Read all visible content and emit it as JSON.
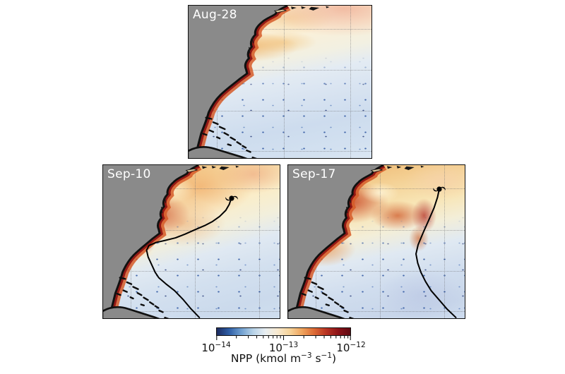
{
  "figure": {
    "background": "#ffffff",
    "land_color": "#8a8a8a",
    "track_color": "#000000",
    "panels": [
      {
        "id": "aug28",
        "label": "Aug-28",
        "has_hurricane_track": false
      },
      {
        "id": "sep10",
        "label": "Sep-10",
        "has_hurricane_track": true
      },
      {
        "id": "sep17",
        "label": "Sep-17",
        "has_hurricane_track": true
      }
    ],
    "hurricane": {
      "sep10": [
        72.6,
        21.6
      ],
      "sep17": [
        85.6,
        15.5
      ]
    },
    "tracks": {
      "sep10": [
        [
          54.5,
          99.5
        ],
        [
          49.5,
          93.5
        ],
        [
          45.5,
          88
        ],
        [
          40.5,
          82
        ],
        [
          35.5,
          77.5
        ],
        [
          31.5,
          73.5
        ],
        [
          29.5,
          70
        ],
        [
          27.5,
          65
        ],
        [
          25.5,
          60
        ],
        [
          24.6,
          55.5
        ],
        [
          26,
          52.5
        ],
        [
          30,
          50.5
        ],
        [
          35,
          49.2
        ],
        [
          41,
          47.5
        ],
        [
          46.5,
          45
        ],
        [
          52,
          42.2
        ],
        [
          57.5,
          39.5
        ],
        [
          62,
          36.8
        ],
        [
          66,
          33.5
        ],
        [
          69.5,
          29.5
        ],
        [
          71.5,
          25.5
        ],
        [
          72.6,
          21.6
        ]
      ],
      "sep17": [
        [
          95,
          99.5
        ],
        [
          90,
          94
        ],
        [
          85.5,
          88
        ],
        [
          81,
          82
        ],
        [
          77.8,
          76
        ],
        [
          75.2,
          70
        ],
        [
          73.4,
          64
        ],
        [
          72.4,
          58
        ],
        [
          73.6,
          52
        ],
        [
          76.5,
          44
        ],
        [
          79.6,
          36
        ],
        [
          82.6,
          28
        ],
        [
          84.6,
          21
        ],
        [
          85.6,
          15.5
        ]
      ]
    },
    "colorbar": {
      "label_text": "NPP (kmol m⁻³ s⁻¹)",
      "label_parts": {
        "p1": "NPP (kmol m",
        "e1": "−3",
        "p2": " s",
        "e2": "−1",
        "p3": ")"
      },
      "ticks": [
        {
          "base": "10",
          "exp": "−14"
        },
        {
          "base": "10",
          "exp": "−13"
        },
        {
          "base": "10",
          "exp": "−12"
        }
      ],
      "gradient": [
        "#1d2b5f",
        "#2e5ea6",
        "#6f9fd0",
        "#b8d3e8",
        "#e8eef2",
        "#f8ead0",
        "#f7d49b",
        "#efa55e",
        "#dd6b35",
        "#b93524",
        "#8c1218",
        "#5f0a12"
      ]
    }
  },
  "chart_data": {
    "type": "heatmap",
    "title": "",
    "variable": "NPP",
    "units": "kmol m⁻³ s⁻¹",
    "scale": "log10",
    "value_range": [
      "1e-14",
      "1e-12"
    ],
    "colorbar_ticks": [
      "10⁻¹⁴",
      "10⁻¹³",
      "10⁻¹²"
    ],
    "legend_position": "bottom-center",
    "panels": [
      {
        "date": "Aug-28",
        "hurricane_track_shown": false
      },
      {
        "date": "Sep-10",
        "hurricane_track_shown": true
      },
      {
        "date": "Sep-17",
        "hurricane_track_shown": true
      }
    ],
    "annotations": "Black curve with cyclone symbol marks the hurricane track and storm position in the Sep-10 and Sep-17 panels; high NPP (red) hugs the coast and hurricane wake, low NPP (blue) fills the open ocean; gray = land, dotted lines = lat/lon graticule"
  }
}
